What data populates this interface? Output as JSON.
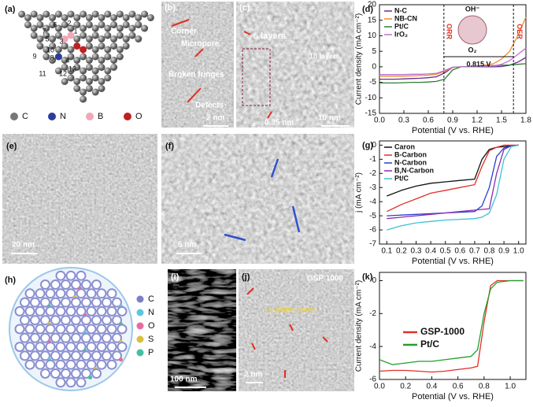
{
  "panels": {
    "a": {
      "label": "(a)",
      "numbers": [
        "1",
        "2",
        "3",
        "4",
        "5",
        "6",
        "7",
        "8",
        "9",
        "10",
        "11",
        "12",
        "13"
      ],
      "legend": [
        "C",
        "N",
        "B",
        "O"
      ]
    },
    "b": {
      "label": "(b)",
      "texts": [
        "Corner",
        "Micropore",
        "Broken fringes",
        "Defects"
      ],
      "scale": "2 nm"
    },
    "c": {
      "label": "(c)",
      "texts": [
        "5 layers",
        "10 layers",
        "0.35 nm"
      ],
      "scale": "10 nm"
    },
    "e": {
      "label": "(e)",
      "scale": "20 nm"
    },
    "f": {
      "label": "(f)",
      "scale": "5 nm"
    },
    "h": {
      "label": "(h)",
      "legend": [
        "C",
        "N",
        "O",
        "S",
        "P"
      ]
    },
    "i": {
      "label": "(i)",
      "scale": "100 nm"
    },
    "j": {
      "label": "(j)",
      "texts": [
        "GSP 1000",
        "In plane pores"
      ],
      "scale": "2 nm"
    }
  },
  "chart_data": [
    {
      "type": "line",
      "label": "(d)",
      "x_label": "Potential (V vs. RHE)",
      "y_label": "Current density (mA cm⁻²)",
      "x": [
        0,
        0.1,
        0.2,
        0.3,
        0.4,
        0.5,
        0.6,
        0.7,
        0.8,
        0.9,
        1.0,
        1.1,
        1.2,
        1.3,
        1.4,
        1.5,
        1.6,
        1.7,
        1.8
      ],
      "xlim": [
        0,
        1.8
      ],
      "xticks": [
        {
          "value": 0,
          "label": "0.0"
        },
        0.3,
        0.6,
        0.9,
        1.2,
        1.5,
        1.8
      ],
      "ylim": [
        -15,
        20
      ],
      "yticks": [
        -15,
        -10,
        -5,
        0,
        5,
        10,
        15,
        20
      ],
      "legend": "upper left",
      "annotations": [
        "OH⁻",
        "ORR",
        "OER",
        "O₂",
        "0.815 V"
      ],
      "series": [
        {
          "name": "N-C",
          "color": "#6a2c91",
          "values": [
            -4,
            -4,
            -4,
            -3.9,
            -3.8,
            -3.7,
            -3.5,
            -3.2,
            -2,
            -0.2,
            0,
            0,
            0,
            0,
            0,
            0.1,
            0.5,
            1.5,
            3
          ]
        },
        {
          "name": "NB-CN",
          "color": "#f08c30",
          "values": [
            -3,
            -3,
            -3,
            -3,
            -2.9,
            -2.8,
            -2.7,
            -2.4,
            -1.5,
            -0.2,
            0,
            0,
            0.2,
            0.5,
            1,
            2.5,
            5,
            10,
            16
          ]
        },
        {
          "name": "Pt/C",
          "color": "#2e7d32",
          "values": [
            -5.2,
            -5.2,
            -5.2,
            -5.1,
            -5,
            -5,
            -4.9,
            -4.7,
            -4,
            -1,
            0,
            0.1,
            0.2,
            0.3,
            0.4,
            0.5,
            0.6,
            0.8,
            1
          ]
        },
        {
          "name": "IrO₂",
          "color": "#c070d0",
          "values": [
            -2.5,
            -2.5,
            -2.5,
            -2.5,
            -2.4,
            -2.4,
            -2.3,
            -2.1,
            -1.2,
            -0.1,
            0,
            0,
            0,
            0.1,
            0.3,
            0.8,
            2,
            4,
            6
          ]
        }
      ]
    },
    {
      "type": "line",
      "label": "(g)",
      "x_label": "Potential (V vs. RHE)",
      "y_label": "j (mA cm⁻²)",
      "x": [
        0.1,
        0.2,
        0.3,
        0.4,
        0.5,
        0.6,
        0.7,
        0.75,
        0.8,
        0.85,
        0.9,
        0.95,
        1.0
      ],
      "xlim": [
        0.05,
        1.05
      ],
      "xticks": [
        0.1,
        0.2,
        0.3,
        0.4,
        0.5,
        0.6,
        0.7,
        0.8,
        0.9,
        {
          "value": 1,
          "label": "1.0"
        }
      ],
      "ylim": [
        -7,
        0.3
      ],
      "yticks": [
        -7,
        -6,
        -5,
        -4,
        -3,
        -2,
        -1,
        0
      ],
      "legend": "upper left",
      "series": [
        {
          "name": "Caron",
          "color": "#111111",
          "values": [
            -3.6,
            -3.2,
            -2.9,
            -2.7,
            -2.6,
            -2.5,
            -2.4,
            -1,
            -0.3,
            -0.15,
            -0.1,
            -0.05,
            0
          ]
        },
        {
          "name": "B-Carbon",
          "color": "#e0302a",
          "values": [
            -4.7,
            -4.2,
            -3.8,
            -3.4,
            -3.2,
            -3,
            -2.8,
            -1.5,
            -0.4,
            -0.15,
            0,
            0,
            0
          ]
        },
        {
          "name": "N-Carbon",
          "color": "#2a3fd0",
          "values": [
            -5,
            -4.95,
            -4.9,
            -4.85,
            -4.8,
            -4.75,
            -4.7,
            -4.3,
            -3,
            -0.8,
            -0.2,
            -0.05,
            0
          ]
        },
        {
          "name": "B,N-Carbon",
          "color": "#8a2bb0",
          "values": [
            -5.2,
            -5.1,
            -5,
            -4.9,
            -4.8,
            -4.7,
            -4.6,
            -4.55,
            -4.5,
            -2,
            -0.3,
            -0.05,
            0
          ]
        },
        {
          "name": "Pt/C",
          "color": "#3cc0d8",
          "values": [
            -6,
            -5.7,
            -5.5,
            -5.4,
            -5.3,
            -5.25,
            -5.2,
            -5.1,
            -4.8,
            -3.5,
            -1,
            -0.1,
            0
          ]
        }
      ]
    },
    {
      "type": "line",
      "label": "(k)",
      "x_label": "Potential (V vs. RHE)",
      "y_label": "Current density (mA cm⁻²)",
      "x": [
        0,
        0.1,
        0.2,
        0.3,
        0.4,
        0.5,
        0.6,
        0.7,
        0.75,
        0.8,
        0.85,
        0.9,
        1.0,
        1.1
      ],
      "xlim": [
        0,
        1.12
      ],
      "xticks": [
        {
          "value": 0,
          "label": "0.0"
        },
        0.2,
        0.4,
        0.6,
        0.8,
        {
          "value": 1,
          "label": "1.0"
        }
      ],
      "ylim": [
        -6,
        0.5
      ],
      "yticks": [
        -6,
        -4,
        -2,
        0
      ],
      "legend": "center left",
      "series": [
        {
          "name": "GSP-1000",
          "color": "#e0302a",
          "values": [
            -5.5,
            -5.45,
            -5.45,
            -5.5,
            -5.55,
            -5.5,
            -5.4,
            -5.3,
            -5.2,
            -2.5,
            -0.3,
            0,
            0,
            0
          ]
        },
        {
          "name": "Pt/C",
          "color": "#22a02a",
          "values": [
            -4.8,
            -5.1,
            -5,
            -4.9,
            -4.9,
            -4.8,
            -4.7,
            -4.6,
            -4.2,
            -2,
            -0.5,
            -0.1,
            0,
            0
          ]
        }
      ]
    }
  ]
}
